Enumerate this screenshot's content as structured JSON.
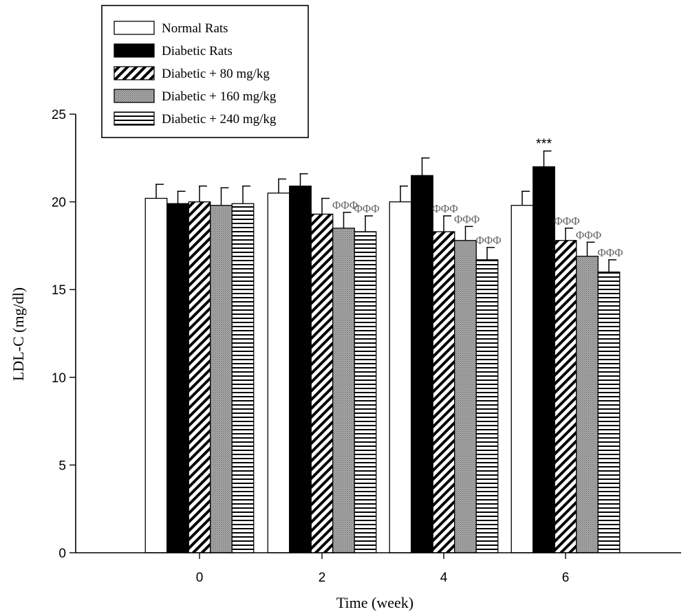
{
  "chart_data": {
    "type": "bar",
    "xlabel": "Time (week)",
    "ylabel": "LDL-C (mg/dl)",
    "ylim": [
      0,
      25
    ],
    "yticks": [
      0,
      5,
      10,
      15,
      20,
      25
    ],
    "categories": [
      "0",
      "2",
      "4",
      "6"
    ],
    "legend_position": "top-left",
    "series": [
      {
        "name": "Normal Rats",
        "pattern": "white",
        "values": [
          20.2,
          20.5,
          20.0,
          19.8
        ],
        "errors": [
          0.8,
          0.8,
          0.9,
          0.8
        ]
      },
      {
        "name": "Diabetic Rats",
        "pattern": "black",
        "values": [
          19.9,
          20.9,
          21.5,
          22.0
        ],
        "errors": [
          0.7,
          0.7,
          1.0,
          0.9
        ]
      },
      {
        "name": "Diabetic + 80 mg/kg",
        "pattern": "diagonal-hatch",
        "values": [
          20.0,
          19.3,
          18.3,
          17.8
        ],
        "errors": [
          0.9,
          0.9,
          0.9,
          0.7
        ]
      },
      {
        "name": "Diabetic + 160 mg/kg",
        "pattern": "dotted-gray",
        "values": [
          19.8,
          18.5,
          17.8,
          16.9
        ],
        "errors": [
          1.0,
          0.9,
          0.8,
          0.8
        ]
      },
      {
        "name": "Diabetic + 240 mg/kg",
        "pattern": "horizontal-lines",
        "values": [
          19.9,
          18.3,
          16.7,
          16.0
        ],
        "errors": [
          1.0,
          0.9,
          0.7,
          0.7
        ]
      }
    ],
    "annotations": [
      {
        "category": "2",
        "series": 3,
        "text": "ΦΦΦ"
      },
      {
        "category": "2",
        "series": 4,
        "text": "ΦΦΦ"
      },
      {
        "category": "4",
        "series": 2,
        "text": "ΦΦΦ"
      },
      {
        "category": "4",
        "series": 3,
        "text": "ΦΦΦ"
      },
      {
        "category": "4",
        "series": 4,
        "text": "ΦΦΦ"
      },
      {
        "category": "6",
        "series": 1,
        "text": "***"
      },
      {
        "category": "6",
        "series": 2,
        "text": "ΦΦΦ"
      },
      {
        "category": "6",
        "series": 3,
        "text": "ΦΦΦ"
      },
      {
        "category": "6",
        "series": 4,
        "text": "ΦΦΦ"
      }
    ]
  }
}
